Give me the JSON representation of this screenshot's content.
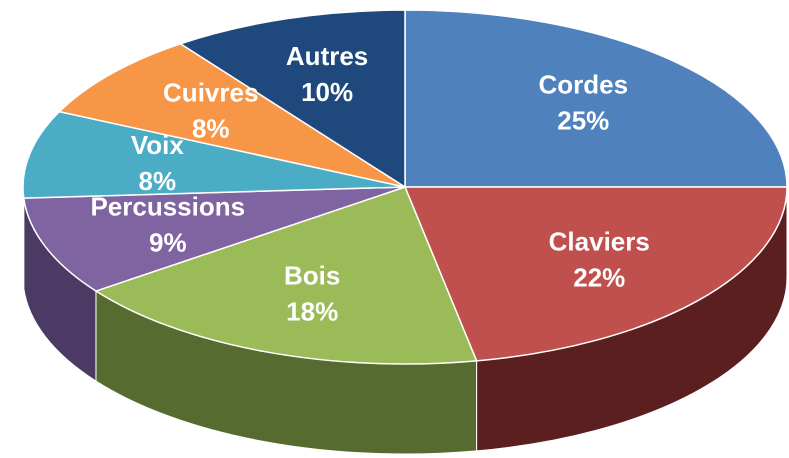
{
  "chart_data": {
    "type": "pie",
    "categories": [
      "Cordes",
      "Claviers",
      "Bois",
      "Percussions",
      "Voix",
      "Cuivres",
      "Autres"
    ],
    "values": [
      25,
      22,
      18,
      9,
      8,
      8,
      10
    ],
    "value_labels": [
      "25%",
      "22%",
      "18%",
      "9%",
      "8%",
      "8%",
      "10%"
    ],
    "colors": [
      "#4f81bd",
      "#c0504d",
      "#9bbb59",
      "#8064a2",
      "#4bacc6",
      "#f79646",
      "#1f497d"
    ],
    "side_colors": [
      "#2c4d75",
      "#5a1f1e",
      "#556b2f",
      "#4b3a63",
      "#2a6a7c",
      "#a85a1e",
      "#112844"
    ]
  }
}
